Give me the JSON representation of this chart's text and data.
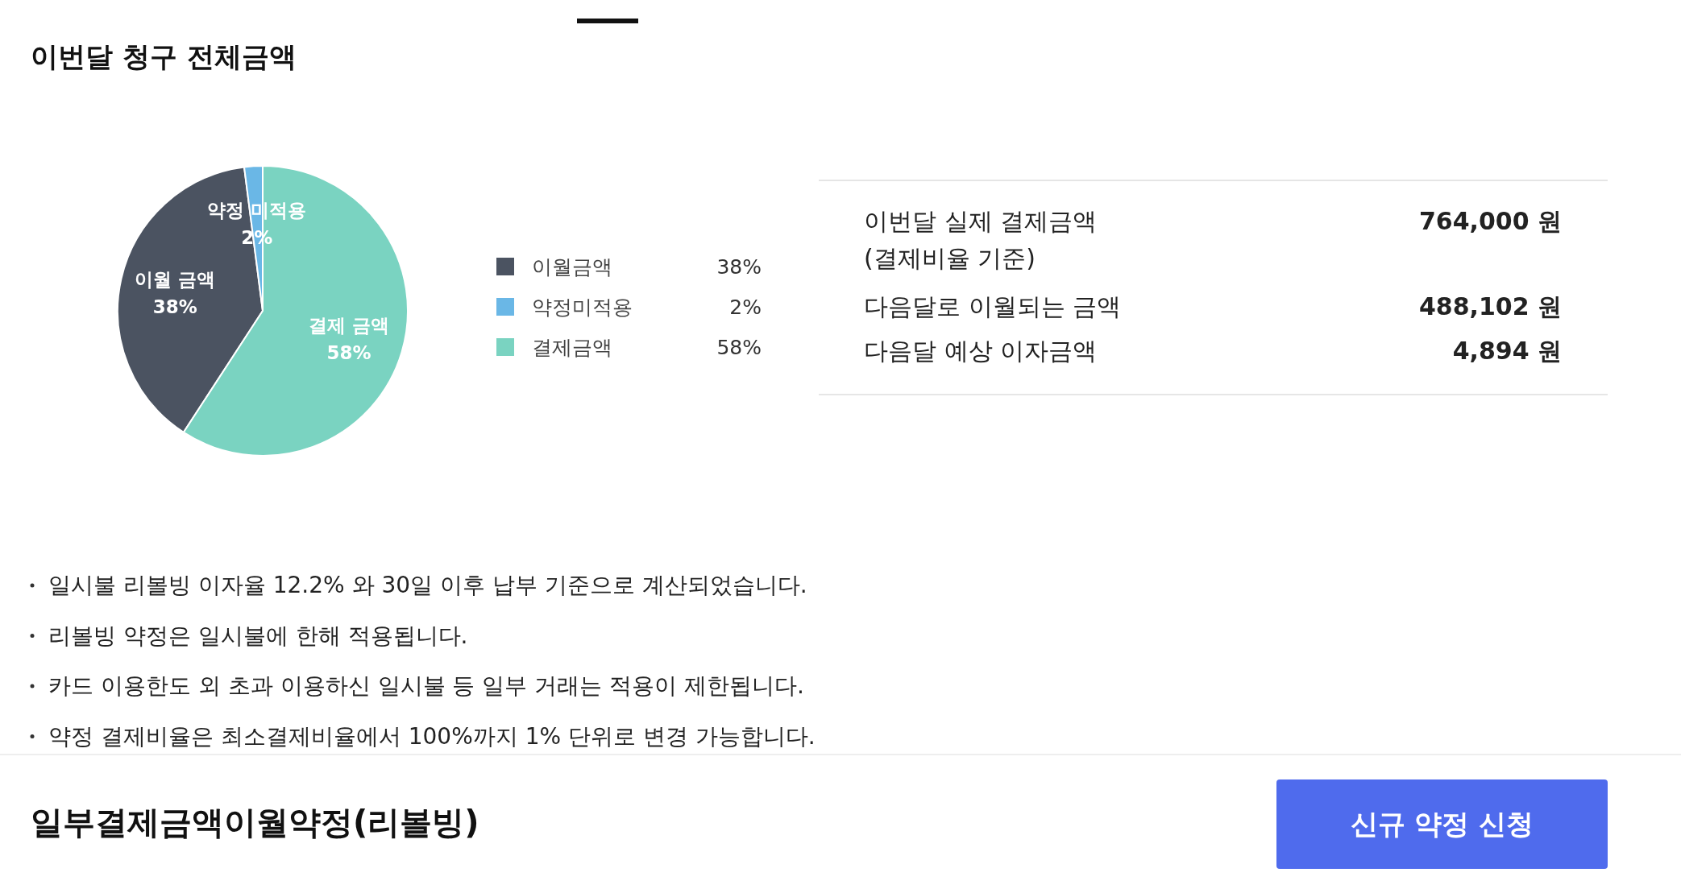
{
  "chart_data": [
    {
      "type": "pie",
      "title": "이번달 청구 전체금액",
      "categories": [
        "이월금액",
        "약정미적용",
        "결제금액"
      ],
      "values": [
        38,
        2,
        58
      ],
      "colors": [
        "#4b5361",
        "#6ab7e6",
        "#7ad3c1"
      ],
      "legend": "right",
      "value_labels": [
        "38%",
        "2%",
        "58%"
      ],
      "annotations": [
        "이월 금액",
        "약정 미적용",
        "결제 금액",
        "일시불 리볼빙 이자율 12.2% 와 30일 이후 납부 기준으로 계산되었습니다.",
        "리볼빙 약정은 일시불에 한해 적용됩니다.",
        "카드 이용한도 외 초과 이용하신 일시불 등 일부 거래는 적용이 제한됩니다.",
        "약정 결제비율은 최소결제비율에서 100%까지 1% 단위로 변경 가능합니다."
      ]
    },
    {
      "type": "other",
      "annotations": [
        "이번달 실제 결제금액\n(결제비율 기준)",
        "764,000 원",
        "다음달로 이월되는 금액",
        "488,102 원",
        "다음달 예상 이자금액",
        "4,894 원"
      ]
    },
    {
      "type": "other",
      "title": "일부결제금액이월약정(리볼빙)",
      "annotations": [
        "신규 약정 신청"
      ]
    }
  ]
}
